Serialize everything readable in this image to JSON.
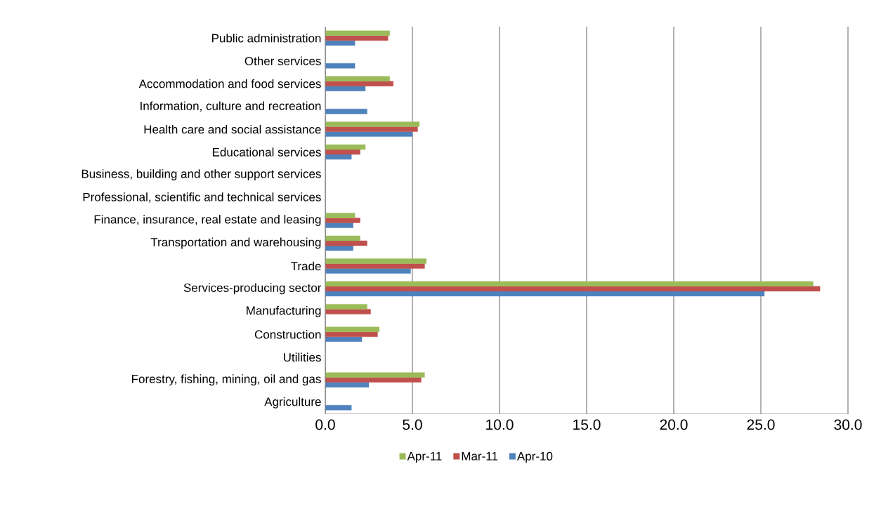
{
  "chart_data": {
    "type": "bar",
    "orientation": "horizontal",
    "categories": [
      "Public administration",
      "Other services",
      "Accommodation and food services",
      "Information, culture and recreation",
      "Health care and social assistance",
      "Educational services",
      "Business, building and other support services",
      "Professional, scientific and technical services",
      "Finance, insurance, real estate and leasing",
      "Transportation and warehousing",
      "Trade",
      "Services-producing sector",
      "Manufacturing",
      "Construction",
      "Utilities",
      "Forestry, fishing, mining, oil and gas",
      "Agriculture"
    ],
    "series": [
      {
        "name": "Apr-11",
        "color": "#9bbb59",
        "values": [
          3.7,
          null,
          3.7,
          null,
          5.4,
          2.3,
          null,
          null,
          1.7,
          2.0,
          5.8,
          28.0,
          2.4,
          3.1,
          null,
          5.7,
          null
        ]
      },
      {
        "name": "Mar-11",
        "color": "#c0504d",
        "values": [
          3.6,
          null,
          3.9,
          null,
          5.3,
          2.0,
          null,
          null,
          2.0,
          2.4,
          5.7,
          28.4,
          2.6,
          3.0,
          null,
          5.5,
          null
        ]
      },
      {
        "name": "Apr-10",
        "color": "#4f81bd",
        "values": [
          1.7,
          1.7,
          2.3,
          2.4,
          5.0,
          1.5,
          null,
          null,
          1.6,
          1.6,
          4.9,
          25.2,
          null,
          2.1,
          null,
          2.5,
          1.5
        ]
      }
    ],
    "xlim": [
      0,
      30
    ],
    "xticks": [
      {
        "value": 0,
        "label": "0.0"
      },
      {
        "value": 5,
        "label": "5.0"
      },
      {
        "value": 10,
        "label": "10.0"
      },
      {
        "value": 15,
        "label": "15.0"
      },
      {
        "value": 20,
        "label": "20.0"
      },
      {
        "value": 25,
        "label": "25.0"
      },
      {
        "value": 30,
        "label": "30.0"
      }
    ],
    "grid": "x",
    "legend": "bottom"
  }
}
